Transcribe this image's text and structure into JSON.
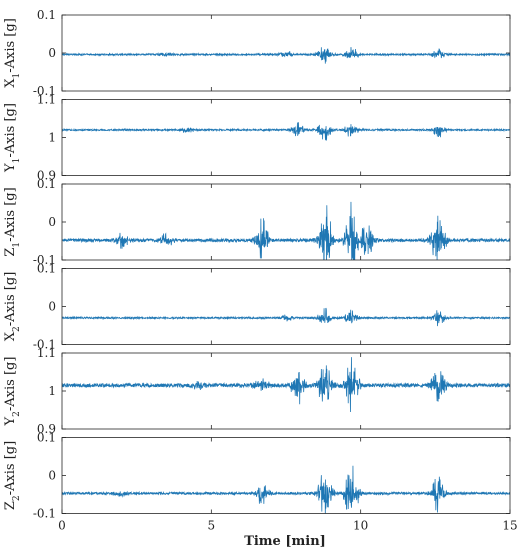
{
  "chart_data": {
    "type": "line",
    "xlabel": "Time [min]",
    "xlim": [
      0,
      15
    ],
    "xticks": [
      "0",
      "5",
      "10",
      "15"
    ],
    "color": "#1f77b4",
    "panels": [
      {
        "ylabel_main": "X",
        "ylabel_sub": "1",
        "ylabel_tail": "-Axis [g]",
        "ylim": [
          -0.1,
          0.1
        ],
        "yticks": [
          "-0.1",
          "0",
          "0.1"
        ],
        "baseline": -0.004,
        "noise": 0.002,
        "bursts": [
          [
            8.8,
            0.025
          ],
          [
            9.7,
            0.02
          ],
          [
            12.6,
            0.015
          ],
          [
            3.5,
            0.005
          ],
          [
            7.5,
            0.01
          ]
        ]
      },
      {
        "ylabel_main": "Y",
        "ylabel_sub": "1",
        "ylabel_tail": "-Axis [g]",
        "ylim": [
          0.9,
          1.1
        ],
        "yticks": [
          "0.9",
          "1",
          "1.1"
        ],
        "baseline": 1.02,
        "noise": 0.002,
        "bursts": [
          [
            8.8,
            0.03
          ],
          [
            9.7,
            0.025
          ],
          [
            12.6,
            0.02
          ],
          [
            7.9,
            0.02
          ],
          [
            4.2,
            0.008
          ]
        ]
      },
      {
        "ylabel_main": "Z",
        "ylabel_sub": "1",
        "ylabel_tail": "-Axis [g]",
        "ylim": [
          -0.1,
          0.1
        ],
        "yticks": [
          "-0.1",
          "0",
          "0.1"
        ],
        "baseline": -0.048,
        "noise": 0.004,
        "bursts": [
          [
            8.8,
            0.12
          ],
          [
            9.7,
            0.1
          ],
          [
            12.6,
            0.08
          ],
          [
            6.7,
            0.06
          ],
          [
            10.2,
            0.05
          ],
          [
            2,
            0.02
          ],
          [
            3.5,
            0.02
          ]
        ]
      },
      {
        "ylabel_main": "X",
        "ylabel_sub": "2",
        "ylabel_tail": "-Axis [g]",
        "ylim": [
          -0.1,
          0.1
        ],
        "yticks": [
          "-0.1",
          "0",
          "0.1"
        ],
        "baseline": -0.03,
        "noise": 0.002,
        "bursts": [
          [
            8.8,
            0.025
          ],
          [
            9.7,
            0.02
          ],
          [
            12.6,
            0.02
          ],
          [
            7.5,
            0.01
          ]
        ]
      },
      {
        "ylabel_main": "Y",
        "ylabel_sub": "2",
        "ylabel_tail": "-Axis [g]",
        "ylim": [
          0.9,
          1.1
        ],
        "yticks": [
          "0.9",
          "1",
          "1.1"
        ],
        "baseline": 1.015,
        "noise": 0.005,
        "bursts": [
          [
            9.7,
            0.07
          ],
          [
            8.8,
            0.06
          ],
          [
            12.6,
            0.05
          ],
          [
            7.9,
            0.05
          ],
          [
            6.7,
            0.02
          ],
          [
            4.6,
            0.012
          ]
        ]
      },
      {
        "ylabel_main": "Z",
        "ylabel_sub": "2",
        "ylabel_tail": "-Axis [g]",
        "ylim": [
          -0.1,
          0.1
        ],
        "yticks": [
          "-0.1",
          "0",
          "0.1"
        ],
        "baseline": -0.047,
        "noise": 0.003,
        "bursts": [
          [
            9.7,
            0.08
          ],
          [
            8.8,
            0.07
          ],
          [
            12.6,
            0.05
          ],
          [
            6.7,
            0.03
          ],
          [
            2,
            0.01
          ]
        ]
      }
    ]
  }
}
